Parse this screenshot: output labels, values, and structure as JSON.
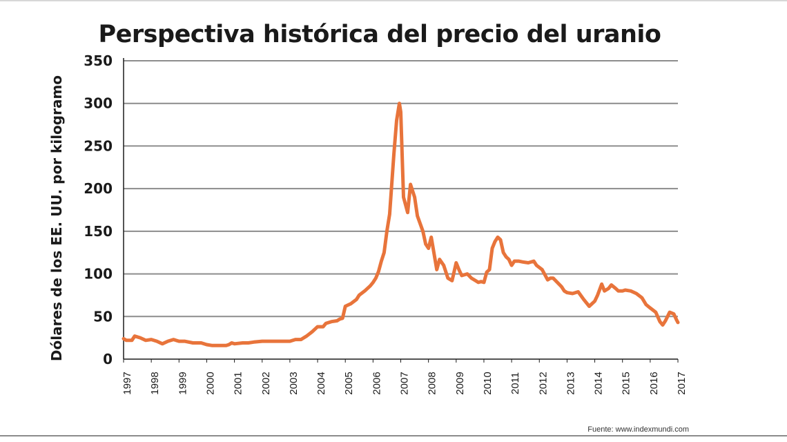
{
  "source": "Fuente: www.indexmundi.com",
  "chart_data": {
    "type": "line",
    "title": "Perspectiva histórica del precio del uranio",
    "xlabel": "",
    "ylabel": "Dólares de los EE. UU. por kilogramo",
    "ylim": [
      0,
      350
    ],
    "xlim": [
      1997,
      2017
    ],
    "yticks": [
      "0",
      "50",
      "100",
      "150",
      "200",
      "250",
      "300",
      "350"
    ],
    "xticks": [
      "1997",
      "1998",
      "1999",
      "2000",
      "2001",
      "2002",
      "2003",
      "2004",
      "2005",
      "2006",
      "2007",
      "2008",
      "2009",
      "2010",
      "2011",
      "2012",
      "2013",
      "2014",
      "2015",
      "2016",
      "2017"
    ],
    "grid": true,
    "line_color": "#e8743b",
    "series": [
      {
        "x": [
          1997.0,
          1997.1,
          1997.3,
          1997.4,
          1997.6,
          1997.8,
          1998.0,
          1998.2,
          1998.4,
          1998.6,
          1998.8,
          1999.0,
          1999.2,
          1999.5,
          1999.8,
          2000.0,
          2000.2,
          2000.5,
          2000.7,
          2000.8,
          2000.9,
          2001.0,
          2001.3,
          2001.5,
          2001.7,
          2002.0,
          2002.3,
          2002.5,
          2002.8,
          2003.0,
          2003.2,
          2003.4,
          2003.5,
          2003.6,
          2003.8,
          2004.0,
          2004.2,
          2004.3,
          2004.5,
          2004.7,
          2004.8,
          2004.9,
          2005.0,
          2005.2,
          2005.4,
          2005.5,
          2005.7,
          2005.9,
          2006.0,
          2006.1,
          2006.2,
          2006.3,
          2006.4,
          2006.5,
          2006.6,
          2006.75,
          2006.85,
          2006.95,
          2007.0,
          2007.1,
          2007.25,
          2007.35,
          2007.5,
          2007.6,
          2007.8,
          2007.9,
          2008.0,
          2008.1,
          2008.3,
          2008.4,
          2008.55,
          2008.7,
          2008.85,
          2009.0,
          2009.1,
          2009.2,
          2009.4,
          2009.55,
          2009.7,
          2009.8,
          2009.9,
          2010.0,
          2010.1,
          2010.2,
          2010.3,
          2010.4,
          2010.5,
          2010.6,
          2010.7,
          2010.8,
          2010.9,
          2011.0,
          2011.1,
          2011.25,
          2011.4,
          2011.6,
          2011.8,
          2011.9,
          2012.1,
          2012.3,
          2012.4,
          2012.5,
          2012.65,
          2012.8,
          2012.9,
          2013.0,
          2013.2,
          2013.4,
          2013.6,
          2013.8,
          2014.0,
          2014.1,
          2014.25,
          2014.35,
          2014.5,
          2014.6,
          2014.75,
          2014.85,
          2015.0,
          2015.1,
          2015.3,
          2015.5,
          2015.7,
          2015.85,
          2016.0,
          2016.2,
          2016.35,
          2016.45,
          2016.55,
          2016.7,
          2016.85,
          2016.95,
          2017.0
        ],
        "y": [
          24,
          22,
          22,
          27,
          25,
          22,
          23,
          21,
          18,
          21,
          23,
          21,
          21,
          19,
          19,
          17,
          16,
          16,
          16,
          17,
          19,
          18,
          19,
          19,
          20,
          21,
          21,
          21,
          21,
          21,
          23,
          23,
          25,
          27,
          32,
          38,
          38,
          42,
          44,
          45,
          47,
          48,
          62,
          65,
          70,
          75,
          80,
          86,
          90,
          95,
          103,
          115,
          125,
          150,
          170,
          240,
          280,
          300,
          290,
          190,
          172,
          205,
          190,
          168,
          150,
          135,
          130,
          143,
          105,
          117,
          110,
          95,
          92,
          113,
          105,
          98,
          100,
          95,
          92,
          90,
          91,
          90,
          102,
          105,
          130,
          138,
          143,
          140,
          125,
          120,
          117,
          110,
          115,
          115,
          114,
          113,
          115,
          110,
          105,
          93,
          95,
          95,
          90,
          85,
          80,
          78,
          77,
          79,
          70,
          62,
          68,
          75,
          88,
          80,
          83,
          87,
          83,
          80,
          80,
          81,
          80,
          77,
          72,
          64,
          60,
          55,
          44,
          40,
          45,
          55,
          53,
          46,
          43
        ]
      }
    ]
  }
}
